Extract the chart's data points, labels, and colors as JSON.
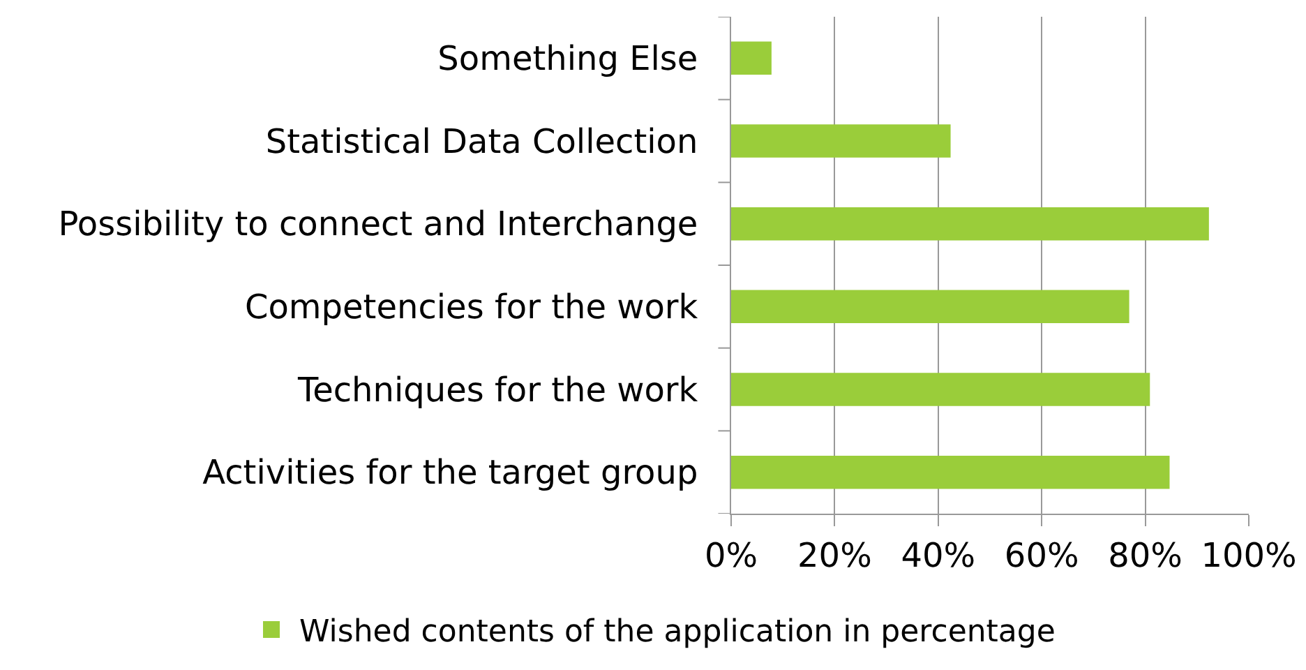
{
  "chart_data": {
    "type": "bar",
    "orientation": "horizontal",
    "categories": [
      "Something Else",
      "Statistical Data Collection",
      "Possibility to connect and Interchange",
      "Competencies for the work",
      "Techniques for the work",
      "Activities for the target group"
    ],
    "series": [
      {
        "name": "Wished contents of the application in percentage",
        "color": "#9acd3a",
        "values": [
          7.8,
          42.4,
          92.3,
          76.9,
          80.9,
          84.7
        ]
      }
    ],
    "xlim": [
      0,
      100
    ],
    "xticks": [
      {
        "value": 0,
        "label": "0%"
      },
      {
        "value": 20,
        "label": "20%"
      },
      {
        "value": 40,
        "label": "40%"
      },
      {
        "value": 60,
        "label": "60%"
      },
      {
        "value": 80,
        "label": "80%"
      },
      {
        "value": 100,
        "label": "100%"
      }
    ],
    "grid": "x",
    "legend": "bottom"
  }
}
